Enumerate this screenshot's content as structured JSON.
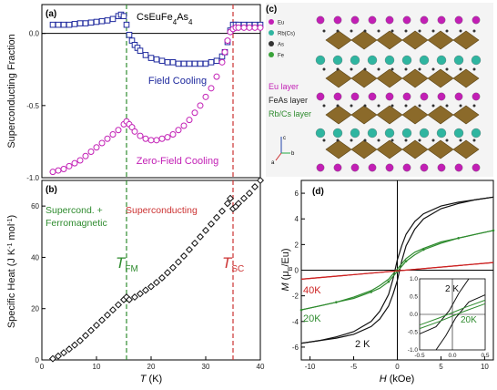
{
  "figure": {
    "panels": {
      "a": "(a)",
      "b": "(b)",
      "c": "(c)",
      "d": "(d)"
    }
  },
  "chart_data": [
    {
      "panel": "a",
      "type": "scatter",
      "title": "CsEuFe4As4",
      "ylabel": "Superconducting Fraction",
      "xlim": [
        0,
        40
      ],
      "ylim": [
        -1.0,
        0.2
      ],
      "yticks": [
        "0.0",
        "-0.5",
        "-1.0"
      ],
      "ytick_values": [
        0.0,
        -0.5,
        -1.0
      ],
      "zero_line": true,
      "series": [
        {
          "name": "Field Cooling",
          "color": "#1f2a9e",
          "marker": "square",
          "x": [
            2,
            3,
            4,
            5,
            6,
            7,
            8,
            9,
            10,
            11,
            12,
            13,
            14,
            14.5,
            15,
            15.5,
            16,
            16.5,
            17,
            17.5,
            18,
            19,
            20,
            21,
            22,
            23,
            24,
            25,
            26,
            27,
            28,
            29,
            30,
            31,
            32,
            33,
            33.5,
            34,
            34.5,
            35,
            35.5,
            36,
            37,
            38,
            39,
            40
          ],
          "y": [
            0.06,
            0.06,
            0.06,
            0.06,
            0.065,
            0.07,
            0.07,
            0.075,
            0.08,
            0.085,
            0.09,
            0.1,
            0.12,
            0.13,
            0.12,
            0.06,
            -0.01,
            -0.05,
            -0.08,
            -0.1,
            -0.12,
            -0.15,
            -0.17,
            -0.18,
            -0.19,
            -0.2,
            -0.2,
            -0.21,
            -0.21,
            -0.21,
            -0.21,
            -0.21,
            -0.21,
            -0.2,
            -0.19,
            -0.16,
            -0.13,
            -0.06,
            0.02,
            0.06,
            0.06,
            0.06,
            0.06,
            0.06,
            0.06,
            0.06
          ]
        },
        {
          "name": "Zero-Field Cooling",
          "color": "#c21fb5",
          "marker": "circle",
          "x": [
            2,
            3,
            4,
            5,
            6,
            7,
            8,
            9,
            10,
            11,
            12,
            13,
            14,
            15,
            15.5,
            16,
            16.5,
            17,
            18,
            19,
            20,
            21,
            22,
            23,
            24,
            25,
            26,
            27,
            28,
            29,
            30,
            31,
            32,
            33,
            33.5,
            34,
            34.5,
            35,
            35.5,
            36,
            37,
            38,
            39,
            40
          ],
          "y": [
            -0.96,
            -0.95,
            -0.94,
            -0.92,
            -0.9,
            -0.88,
            -0.85,
            -0.82,
            -0.79,
            -0.76,
            -0.73,
            -0.7,
            -0.67,
            -0.63,
            -0.61,
            -0.63,
            -0.65,
            -0.68,
            -0.71,
            -0.73,
            -0.74,
            -0.74,
            -0.73,
            -0.72,
            -0.7,
            -0.67,
            -0.64,
            -0.6,
            -0.55,
            -0.5,
            -0.44,
            -0.38,
            -0.3,
            -0.2,
            -0.13,
            -0.05,
            0.01,
            0.03,
            0.04,
            0.04,
            0.04,
            0.04,
            0.04,
            0.04
          ]
        }
      ],
      "annotations": {
        "field_cooling": "Field Cooling",
        "zero_field_cooling": "Zero-Field Cooling"
      }
    },
    {
      "panel": "b",
      "type": "scatter",
      "xlabel": "T (K)",
      "ylabel": "Specific Heat (J K-1 mol-1)",
      "xlim": [
        0,
        40
      ],
      "ylim": [
        0,
        70
      ],
      "xticks": [
        0,
        10,
        20,
        30,
        40
      ],
      "yticks": [
        0,
        20,
        40,
        60
      ],
      "series": [
        {
          "name": "",
          "color": "#111111",
          "marker": "diamond",
          "x": [
            2,
            3,
            4,
            5,
            6,
            7,
            8,
            9,
            10,
            11,
            12,
            13,
            14,
            15,
            15.5,
            16,
            17,
            18,
            19,
            20,
            21,
            22,
            23,
            24,
            25,
            26,
            27,
            28,
            29,
            30,
            31,
            32,
            33,
            34,
            34.5,
            35,
            35.5,
            36,
            37,
            38,
            39,
            40
          ],
          "y": [
            0.5,
            1.5,
            2.8,
            4.2,
            5.8,
            7.5,
            9.5,
            11.5,
            13.5,
            15.5,
            17.5,
            19.5,
            21.5,
            23.5,
            24.5,
            23.5,
            24.5,
            25.8,
            27.2,
            28.6,
            30.2,
            32,
            34,
            36,
            38.2,
            40.5,
            43,
            45.5,
            48,
            50.5,
            53,
            55.5,
            58,
            61,
            63,
            59,
            59.8,
            61,
            63,
            65,
            67.5,
            70
          ]
        }
      ],
      "vlines": [
        {
          "x": 15.5,
          "color": "#2e8b2e",
          "label": "T_FM"
        },
        {
          "x": 35,
          "color": "#cc3333",
          "label": "T_SC"
        }
      ],
      "annotations": {
        "supercond_ferro_line1": "Supercond. +",
        "supercond_ferro_line2": "Ferromagnetic",
        "superconducting": "Superconducting",
        "t_fm_main": "T",
        "t_fm_sub": "FM",
        "t_sc_main": "T",
        "t_sc_sub": "SC"
      }
    },
    {
      "panel": "d",
      "type": "line",
      "xlabel": "H (kOe)",
      "ylabel": "M (μB/Eu)",
      "xlim": [
        -11,
        11
      ],
      "ylim": [
        -7,
        7
      ],
      "xticks": [
        -10,
        -5,
        0,
        5,
        10
      ],
      "yticks": [
        -6,
        -4,
        -2,
        0,
        2,
        4,
        6
      ],
      "series": [
        {
          "name": "2 K",
          "color": "#111111",
          "x": [
            -11,
            -9,
            -7,
            -5,
            -3,
            -2,
            -1,
            -0.5,
            0,
            0.5,
            1,
            2,
            3,
            5,
            7,
            9,
            11
          ],
          "y_up": [
            -5.7,
            -5.5,
            -5.3,
            -5,
            -4.4,
            -3.8,
            -2.8,
            -1.9,
            -0.8,
            0.7,
            1.9,
            3.2,
            4.0,
            4.8,
            5.2,
            5.5,
            5.7
          ],
          "y_down": [
            -5.7,
            -5.5,
            -5.2,
            -4.8,
            -4.0,
            -3.2,
            -1.9,
            -0.7,
            0.8,
            1.9,
            2.8,
            3.8,
            4.4,
            5.0,
            5.3,
            5.5,
            5.7
          ]
        },
        {
          "name": "20K",
          "color": "#2e8b2e",
          "x": [
            -11,
            -9,
            -7,
            -5,
            -3,
            -2,
            -1,
            -0.5,
            0,
            0.5,
            1,
            2,
            3,
            5,
            7,
            9,
            11
          ],
          "y_up": [
            -3.1,
            -2.8,
            -2.5,
            -2.2,
            -1.7,
            -1.4,
            -0.9,
            -0.5,
            -0.1,
            0.3,
            0.7,
            1.2,
            1.6,
            2.1,
            2.5,
            2.8,
            3.1
          ],
          "y_down": [
            -3.1,
            -2.8,
            -2.5,
            -2.1,
            -1.6,
            -1.2,
            -0.7,
            -0.3,
            0.1,
            0.5,
            0.9,
            1.4,
            1.7,
            2.2,
            2.5,
            2.8,
            3.1
          ]
        },
        {
          "name": "40K",
          "color": "#cc2222",
          "x": [
            -11,
            11
          ],
          "y_up": [
            -0.7,
            0.6
          ],
          "y_down": [
            -0.7,
            0.6
          ]
        }
      ],
      "annotations": {
        "label_40k": "40K",
        "label_20k": "20K",
        "label_2k": "2 K"
      },
      "inset": {
        "xlim": [
          -0.5,
          0.5
        ],
        "ylim": [
          -1.0,
          1.0
        ],
        "xticks": [
          "-0.5",
          "0.0",
          "0.5"
        ],
        "yticks": [
          "1.0",
          "0.5",
          "0.0",
          "-0.5",
          "-1.0"
        ],
        "label_2k": "2 K",
        "label_20k": "20K"
      }
    }
  ],
  "structure_panel": {
    "legend": [
      {
        "symbol": "Eu",
        "color": "#c21fb5"
      },
      {
        "symbol": "Rb(Cs)",
        "color": "#2fb5a0"
      },
      {
        "symbol": "As",
        "color": "#333333"
      },
      {
        "symbol": "Fe",
        "color": "#3aa33a"
      }
    ],
    "layer_labels": [
      {
        "text": "Eu layer",
        "color": "#c21fb5"
      },
      {
        "text": "FeAs layer",
        "color": "#222222"
      },
      {
        "text": "Rb/Cs layer",
        "color": "#2e8b2e"
      }
    ],
    "axis_labels": {
      "c": "c",
      "b": "b",
      "a": "a"
    }
  }
}
